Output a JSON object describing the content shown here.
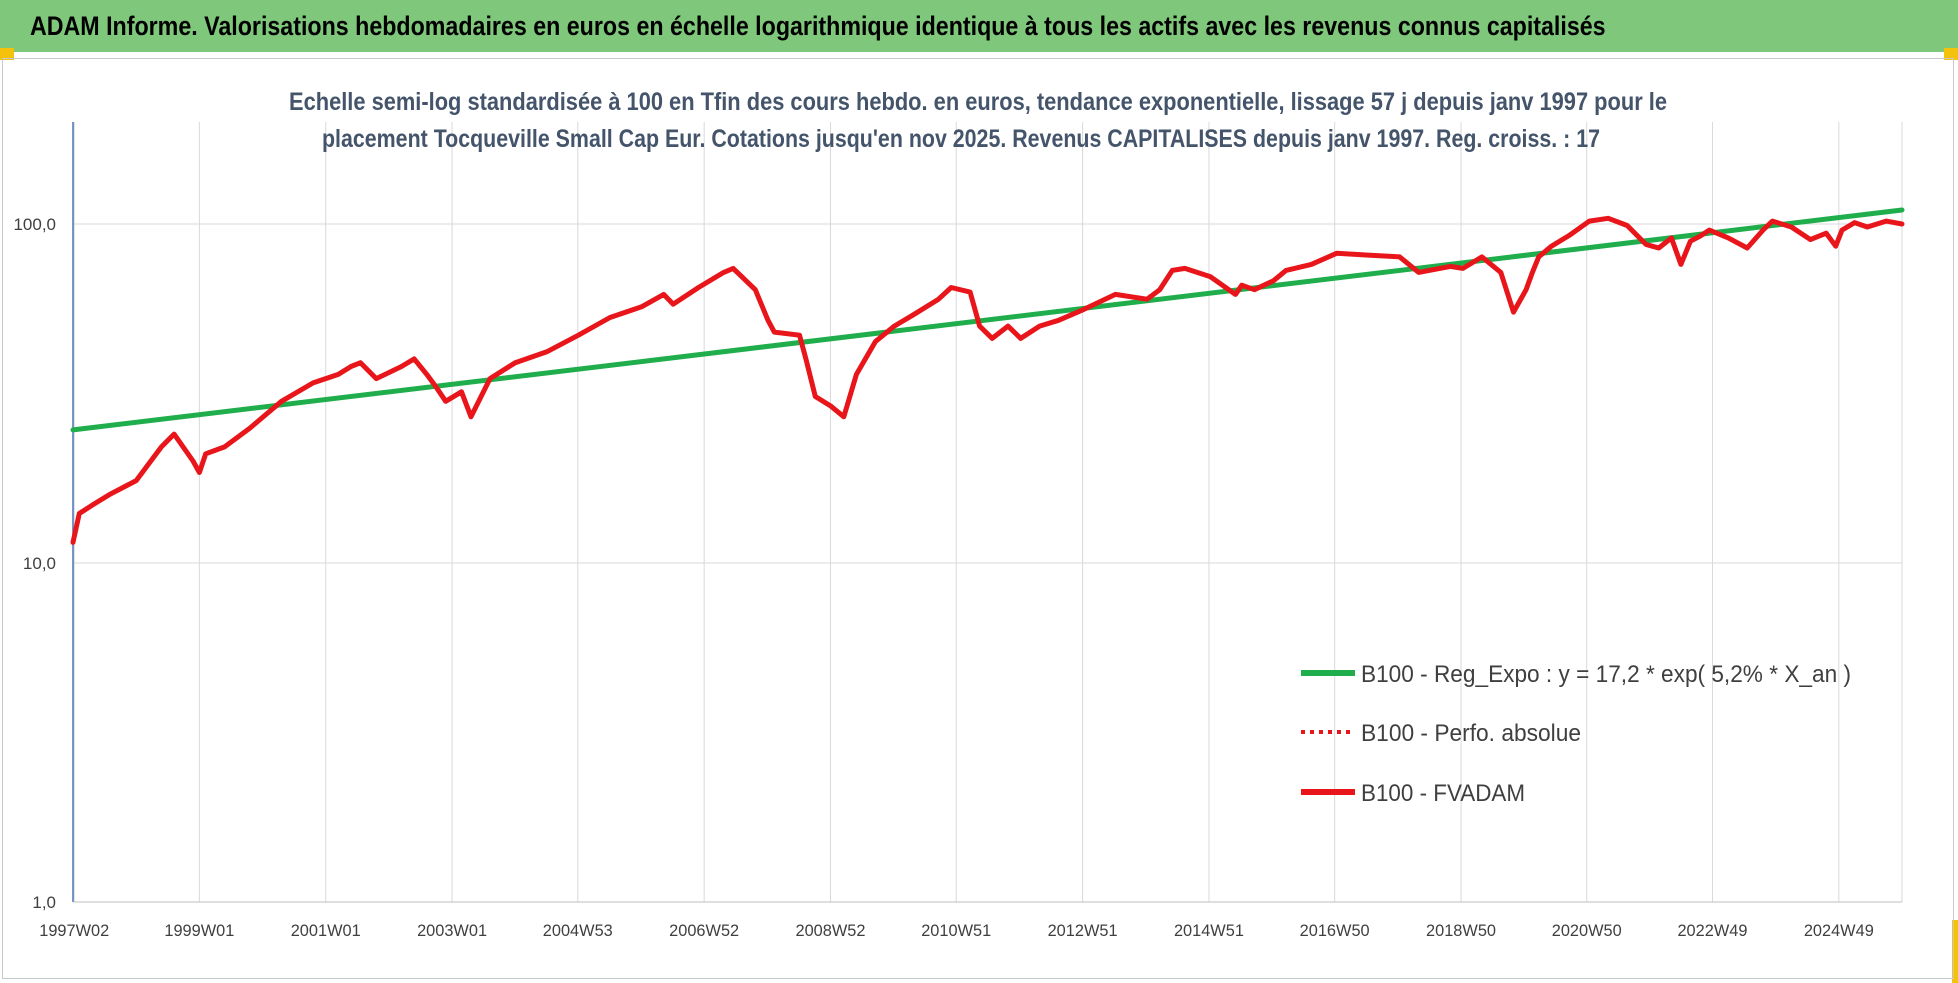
{
  "banner": {
    "title": "ADAM Informe. Valorisations hebdomadaires en euros en échelle logarithmique identique à tous les actifs avec les revenus connus capitalisés"
  },
  "chart_data": {
    "type": "line",
    "title_lines": [
      "Echelle semi-log standardisée à 100 en Tfin des cours hebdo. en euros, tendance exponentielle, lissage 57 j depuis janv 1997 pour le",
      "placement Tocqueville Small Cap Eur. Cotations jusqu'en nov 2025. Revenus CAPITALISES depuis janv 1997. Reg. croiss. : 17"
    ],
    "y_scale": "log",
    "ylim": [
      1,
      200
    ],
    "y_ticks": [
      1,
      10,
      100
    ],
    "y_tick_labels": [
      "1,0",
      "10,0",
      "100,0"
    ],
    "xlim": [
      1997.0,
      2025.95
    ],
    "x_ticks": [
      1997.02,
      1999.0,
      2001.0,
      2003.0,
      2004.99,
      2006.99,
      2008.99,
      2010.98,
      2012.98,
      2014.98,
      2016.97,
      2018.97,
      2020.96,
      2022.95,
      2024.95
    ],
    "x_tick_labels": [
      "1997W02",
      "1999W01",
      "2001W01",
      "2003W01",
      "2004W53",
      "2006W52",
      "2008W52",
      "2010W51",
      "2012W51",
      "2014W51",
      "2016W50",
      "2018W50",
      "2020W50",
      "2022W49",
      "2024W49"
    ],
    "grid": true,
    "legend_position": "lower-right",
    "colors": {
      "regression": "#1fae4b",
      "fvadam": "#e8161a",
      "perfo": "#e8161a",
      "grid": "#d9d9d9",
      "axis": "#4a73b8"
    },
    "series": [
      {
        "name": "B100 - Reg_Expo : y = 17,2 * exp( 5,2% *  X_an )",
        "style": "solid-thick",
        "color": "#1fae4b",
        "x": [
          1997.0,
          2025.95
        ],
        "y": [
          24.7,
          110.0
        ]
      },
      {
        "name": "B100 - Perfo. absolue",
        "style": "dotted",
        "color": "#e8161a",
        "x": [],
        "y": []
      },
      {
        "name": "B100 - FVADAM",
        "style": "solid-thick",
        "color": "#e8161a",
        "x": [
          1997.0,
          1997.1,
          1997.3,
          1997.6,
          1998.0,
          1998.4,
          1998.6,
          1998.9,
          1999.0,
          1999.1,
          1999.4,
          1999.8,
          2000.3,
          2000.8,
          2001.2,
          2001.4,
          2001.55,
          2001.8,
          2002.2,
          2002.4,
          2002.6,
          2002.75,
          2002.9,
          2003.15,
          2003.3,
          2003.6,
          2004.0,
          2004.5,
          2005.0,
          2005.5,
          2006.0,
          2006.35,
          2006.5,
          2006.9,
          2007.3,
          2007.45,
          2007.8,
          2008.0,
          2008.1,
          2008.5,
          2008.6,
          2008.75,
          2009.0,
          2009.2,
          2009.4,
          2009.7,
          2010.0,
          2010.3,
          2010.7,
          2010.9,
          2011.2,
          2011.35,
          2011.55,
          2011.8,
          2012.0,
          2012.3,
          2012.6,
          2013.0,
          2013.5,
          2014.0,
          2014.2,
          2014.4,
          2014.6,
          2015.0,
          2015.4,
          2015.5,
          2015.7,
          2016.0,
          2016.2,
          2016.6,
          2017.0,
          2017.5,
          2018.0,
          2018.3,
          2018.8,
          2019.0,
          2019.3,
          2019.6,
          2019.8,
          2020.0,
          2020.1,
          2020.2,
          2020.4,
          2020.7,
          2021.0,
          2021.3,
          2021.6,
          2021.9,
          2022.1,
          2022.3,
          2022.45,
          2022.6,
          2022.75,
          2022.9,
          2023.2,
          2023.5,
          2023.75,
          2023.9,
          2024.2,
          2024.5,
          2024.75,
          2024.9,
          2025.0,
          2025.2,
          2025.4,
          2025.7,
          2025.95
        ],
        "y": [
          11.5,
          14.0,
          14.8,
          16.0,
          17.5,
          22.0,
          24.0,
          20.0,
          18.5,
          21.0,
          22.0,
          25.0,
          30.0,
          34.0,
          36.0,
          38.0,
          39.0,
          35.0,
          38.0,
          40.0,
          36.0,
          33.0,
          30.0,
          32.0,
          27.0,
          35.0,
          39.0,
          42.0,
          47.0,
          53.0,
          57.0,
          62.0,
          58.0,
          65.0,
          72.0,
          74.0,
          64.0,
          52.0,
          48.0,
          47.0,
          40.0,
          31.0,
          29.0,
          27.0,
          36.0,
          45.0,
          50.0,
          54.0,
          60.0,
          65.0,
          63.0,
          50.0,
          46.0,
          50.0,
          46.0,
          50.0,
          52.0,
          56.0,
          62.0,
          60.0,
          64.0,
          73.0,
          74.0,
          70.0,
          62.0,
          66.0,
          64.0,
          68.0,
          73.0,
          76.0,
          82.0,
          81.0,
          80.0,
          72.0,
          75.0,
          74.0,
          80.0,
          72.0,
          55.0,
          64.0,
          72.0,
          80.0,
          86.0,
          93.0,
          102.0,
          104.0,
          99.0,
          87.0,
          85.0,
          91.0,
          76.0,
          89.0,
          92.0,
          96.0,
          91.0,
          85.0,
          96.0,
          102.0,
          98.0,
          90.0,
          94.0,
          86.0,
          96.0,
          101.0,
          98.0,
          102.0,
          100.0
        ]
      }
    ]
  }
}
